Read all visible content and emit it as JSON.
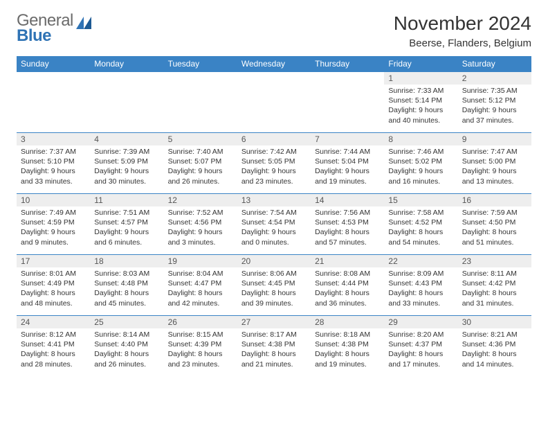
{
  "logo": {
    "word1": "General",
    "word2": "Blue"
  },
  "title": "November 2024",
  "location": "Beerse, Flanders, Belgium",
  "colors": {
    "header_bg": "#3a83c5",
    "header_text": "#ffffff",
    "daynum_bg": "#eeeeee",
    "border": "#3a83c5",
    "logo_gray": "#6b6b6b",
    "logo_blue": "#2f73b5"
  },
  "day_headers": [
    "Sunday",
    "Monday",
    "Tuesday",
    "Wednesday",
    "Thursday",
    "Friday",
    "Saturday"
  ],
  "weeks": [
    [
      null,
      null,
      null,
      null,
      null,
      {
        "n": "1",
        "sunrise": "7:33 AM",
        "sunset": "5:14 PM",
        "dl": "9 hours and 40 minutes."
      },
      {
        "n": "2",
        "sunrise": "7:35 AM",
        "sunset": "5:12 PM",
        "dl": "9 hours and 37 minutes."
      }
    ],
    [
      {
        "n": "3",
        "sunrise": "7:37 AM",
        "sunset": "5:10 PM",
        "dl": "9 hours and 33 minutes."
      },
      {
        "n": "4",
        "sunrise": "7:39 AM",
        "sunset": "5:09 PM",
        "dl": "9 hours and 30 minutes."
      },
      {
        "n": "5",
        "sunrise": "7:40 AM",
        "sunset": "5:07 PM",
        "dl": "9 hours and 26 minutes."
      },
      {
        "n": "6",
        "sunrise": "7:42 AM",
        "sunset": "5:05 PM",
        "dl": "9 hours and 23 minutes."
      },
      {
        "n": "7",
        "sunrise": "7:44 AM",
        "sunset": "5:04 PM",
        "dl": "9 hours and 19 minutes."
      },
      {
        "n": "8",
        "sunrise": "7:46 AM",
        "sunset": "5:02 PM",
        "dl": "9 hours and 16 minutes."
      },
      {
        "n": "9",
        "sunrise": "7:47 AM",
        "sunset": "5:00 PM",
        "dl": "9 hours and 13 minutes."
      }
    ],
    [
      {
        "n": "10",
        "sunrise": "7:49 AM",
        "sunset": "4:59 PM",
        "dl": "9 hours and 9 minutes."
      },
      {
        "n": "11",
        "sunrise": "7:51 AM",
        "sunset": "4:57 PM",
        "dl": "9 hours and 6 minutes."
      },
      {
        "n": "12",
        "sunrise": "7:52 AM",
        "sunset": "4:56 PM",
        "dl": "9 hours and 3 minutes."
      },
      {
        "n": "13",
        "sunrise": "7:54 AM",
        "sunset": "4:54 PM",
        "dl": "9 hours and 0 minutes."
      },
      {
        "n": "14",
        "sunrise": "7:56 AM",
        "sunset": "4:53 PM",
        "dl": "8 hours and 57 minutes."
      },
      {
        "n": "15",
        "sunrise": "7:58 AM",
        "sunset": "4:52 PM",
        "dl": "8 hours and 54 minutes."
      },
      {
        "n": "16",
        "sunrise": "7:59 AM",
        "sunset": "4:50 PM",
        "dl": "8 hours and 51 minutes."
      }
    ],
    [
      {
        "n": "17",
        "sunrise": "8:01 AM",
        "sunset": "4:49 PM",
        "dl": "8 hours and 48 minutes."
      },
      {
        "n": "18",
        "sunrise": "8:03 AM",
        "sunset": "4:48 PM",
        "dl": "8 hours and 45 minutes."
      },
      {
        "n": "19",
        "sunrise": "8:04 AM",
        "sunset": "4:47 PM",
        "dl": "8 hours and 42 minutes."
      },
      {
        "n": "20",
        "sunrise": "8:06 AM",
        "sunset": "4:45 PM",
        "dl": "8 hours and 39 minutes."
      },
      {
        "n": "21",
        "sunrise": "8:08 AM",
        "sunset": "4:44 PM",
        "dl": "8 hours and 36 minutes."
      },
      {
        "n": "22",
        "sunrise": "8:09 AM",
        "sunset": "4:43 PM",
        "dl": "8 hours and 33 minutes."
      },
      {
        "n": "23",
        "sunrise": "8:11 AM",
        "sunset": "4:42 PM",
        "dl": "8 hours and 31 minutes."
      }
    ],
    [
      {
        "n": "24",
        "sunrise": "8:12 AM",
        "sunset": "4:41 PM",
        "dl": "8 hours and 28 minutes."
      },
      {
        "n": "25",
        "sunrise": "8:14 AM",
        "sunset": "4:40 PM",
        "dl": "8 hours and 26 minutes."
      },
      {
        "n": "26",
        "sunrise": "8:15 AM",
        "sunset": "4:39 PM",
        "dl": "8 hours and 23 minutes."
      },
      {
        "n": "27",
        "sunrise": "8:17 AM",
        "sunset": "4:38 PM",
        "dl": "8 hours and 21 minutes."
      },
      {
        "n": "28",
        "sunrise": "8:18 AM",
        "sunset": "4:38 PM",
        "dl": "8 hours and 19 minutes."
      },
      {
        "n": "29",
        "sunrise": "8:20 AM",
        "sunset": "4:37 PM",
        "dl": "8 hours and 17 minutes."
      },
      {
        "n": "30",
        "sunrise": "8:21 AM",
        "sunset": "4:36 PM",
        "dl": "8 hours and 14 minutes."
      }
    ]
  ],
  "labels": {
    "sunrise": "Sunrise: ",
    "sunset": "Sunset: ",
    "daylight": "Daylight: "
  }
}
